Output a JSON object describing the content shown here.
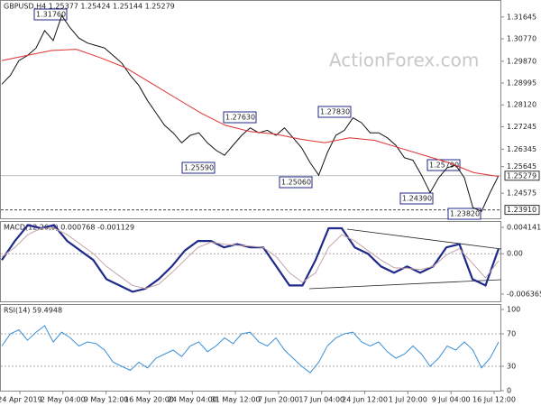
{
  "chart_data": {
    "type": "financial",
    "title": "GBPUSD,H4  1.25377 1.25424 1.25144 1.25279",
    "watermark": "ActionForex.com",
    "x_labels": [
      "24 Apr 2019",
      "2 May 04:00",
      "9 May 12:00",
      "16 May 20:00",
      "24 May 04:00",
      "31 May 12:00",
      "7 Jun 20:00",
      "17 Jun 04:00",
      "24 Jun 12:00",
      "1 Jul 20:00",
      "9 Jul 04:00",
      "16 Jul 12:00"
    ],
    "price": {
      "ylim": [
        1.2357,
        1.3229
      ],
      "yticks": [
        1.31645,
        {
          "value": 1.3077,
          "label": "1.30770"
        },
        {
          "value": 1.2987,
          "label": "1.29870"
        },
        1.28995,
        {
          "value": 1.2812,
          "label": "1.28120"
        },
        1.27245,
        1.26345,
        1.25645,
        1.24575
      ],
      "last": 1.25279,
      "level": {
        "value": 1.2391,
        "label": "1.23910"
      },
      "series": [
        {
          "name": "close",
          "color": "#111111",
          "values": [
            1.2895,
            1.293,
            1.299,
            1.301,
            1.304,
            1.311,
            1.307,
            1.317,
            1.312,
            1.308,
            1.306,
            1.305,
            1.304,
            1.301,
            1.298,
            1.293,
            1.289,
            1.283,
            1.278,
            1.273,
            1.27,
            1.266,
            1.269,
            1.27,
            1.266,
            1.263,
            1.261,
            1.265,
            1.269,
            1.272,
            1.27,
            1.271,
            1.269,
            1.272,
            1.268,
            1.264,
            1.258,
            1.253,
            1.262,
            1.269,
            1.271,
            1.276,
            1.274,
            1.27,
            1.27,
            1.268,
            1.265,
            1.26,
            1.259,
            1.253,
            1.246,
            1.252,
            1.256,
            1.257,
            1.252,
            1.24,
            1.2385,
            1.246,
            1.2528
          ]
        },
        {
          "name": "ma",
          "color": "#e03030",
          "values": [
            1.299,
            1.301,
            1.303,
            1.3035,
            1.3,
            1.296,
            1.29,
            1.284,
            1.278,
            1.273,
            1.2705,
            1.2695,
            1.2675,
            1.266,
            1.268,
            1.267,
            1.264,
            1.261,
            1.258,
            1.254,
            1.2525
          ]
        }
      ],
      "annotations": [
        "1.31760",
        "1.27630",
        "1.27830",
        "1.25590",
        "1.25060",
        "1.25790",
        "1.24390",
        "1.23820"
      ]
    },
    "macd": {
      "title": "MACD(12,26,9) 0.000768 -0.001129",
      "ylim": [
        -0.0075,
        0.005
      ],
      "yticks": [
        0.004141,
        {
          "value": 0,
          "label": "0.00"
        },
        -0.006365
      ],
      "series": [
        {
          "name": "macd",
          "color": "#1f2a8a",
          "values": [
            -0.001,
            0.002,
            0.0045,
            0.004,
            0.0045,
            0.002,
            0.0005,
            -0.001,
            -0.004,
            -0.005,
            -0.006,
            -0.0055,
            -0.004,
            -0.002,
            0.0005,
            0.002,
            0.002,
            0.001,
            0.0015,
            0.001,
            0.001,
            -0.002,
            -0.005,
            -0.005,
            -0.001,
            0.004,
            0.004,
            0.001,
            0,
            -0.002,
            -0.003,
            -0.002,
            -0.003,
            -0.002,
            0.001,
            0.0015,
            -0.004,
            -0.005,
            0.0008
          ]
        },
        {
          "name": "signal",
          "color": "#c4a4a4",
          "values": [
            -0.0005,
            0.001,
            0.003,
            0.004,
            0.004,
            0.003,
            0.0015,
            0,
            -0.002,
            -0.0035,
            -0.005,
            -0.0055,
            -0.0048,
            -0.003,
            -0.001,
            0.001,
            0.0018,
            0.0015,
            0.0013,
            0.0012,
            0.001,
            -0.0005,
            -0.003,
            -0.0045,
            -0.003,
            0.001,
            0.003,
            0.002,
            0.0005,
            -0.001,
            -0.0022,
            -0.0023,
            -0.0025,
            -0.002,
            -0.0002,
            0.0008,
            -0.0015,
            -0.0038,
            -0.0011
          ]
        }
      ]
    },
    "rsi": {
      "title": "RSI(14) 59.4948",
      "ylim": [
        0,
        100
      ],
      "yticks": [
        100,
        70,
        30,
        0
      ],
      "series": [
        {
          "name": "rsi",
          "color": "#3a8fd8",
          "values": [
            55,
            70,
            75,
            62,
            72,
            80,
            60,
            72,
            65,
            55,
            60,
            58,
            50,
            35,
            30,
            25,
            35,
            28,
            40,
            45,
            50,
            42,
            55,
            60,
            48,
            55,
            65,
            58,
            70,
            72,
            60,
            55,
            65,
            50,
            40,
            30,
            22,
            35,
            55,
            65,
            70,
            72,
            60,
            55,
            60,
            48,
            40,
            45,
            55,
            45,
            30,
            40,
            55,
            50,
            60,
            50,
            28,
            40,
            60
          ]
        }
      ]
    }
  }
}
